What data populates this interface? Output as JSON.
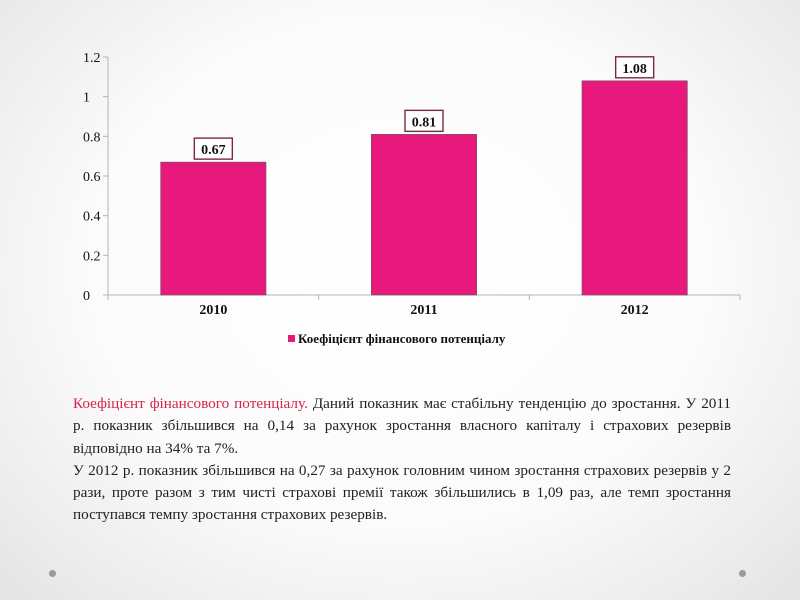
{
  "chart_data": {
    "type": "bar",
    "categories": [
      "2010",
      "2011",
      "2012"
    ],
    "series": [
      {
        "name": "Коефіцієнт фінансового потенціалу",
        "values": [
          0.67,
          0.81,
          1.08
        ],
        "color": "#e8197c"
      }
    ],
    "data_labels": [
      "0.67",
      "0.81",
      "1.08"
    ],
    "yticks": [
      "0",
      "0.2",
      "0.4",
      "0.6",
      "0.8",
      "1",
      "1.2"
    ],
    "ylim": [
      0,
      1.2
    ],
    "grid": false,
    "legend": "bottom",
    "title": "",
    "xlabel": "",
    "ylabel": ""
  },
  "text": {
    "p1_highlight": "Коефіцієнт фінансового потенціалу.",
    "p1_rest": " Даний показник має стабільну тенденцію до зростання. У 2011 р. показник збільшився на  0,14 за рахунок  зростання власного капіталу і страхових резервів відповідно на 34% та 7%.",
    "p2": "У 2012 р. показник збільшився на 0,27 за рахунок  головним чином зростання страхових резервів у 2 рази, проте разом з тим  чисті страхові премії також збільшились в 1,09 раз, але темп зростання поступався темпу зростання страхових резервів."
  }
}
